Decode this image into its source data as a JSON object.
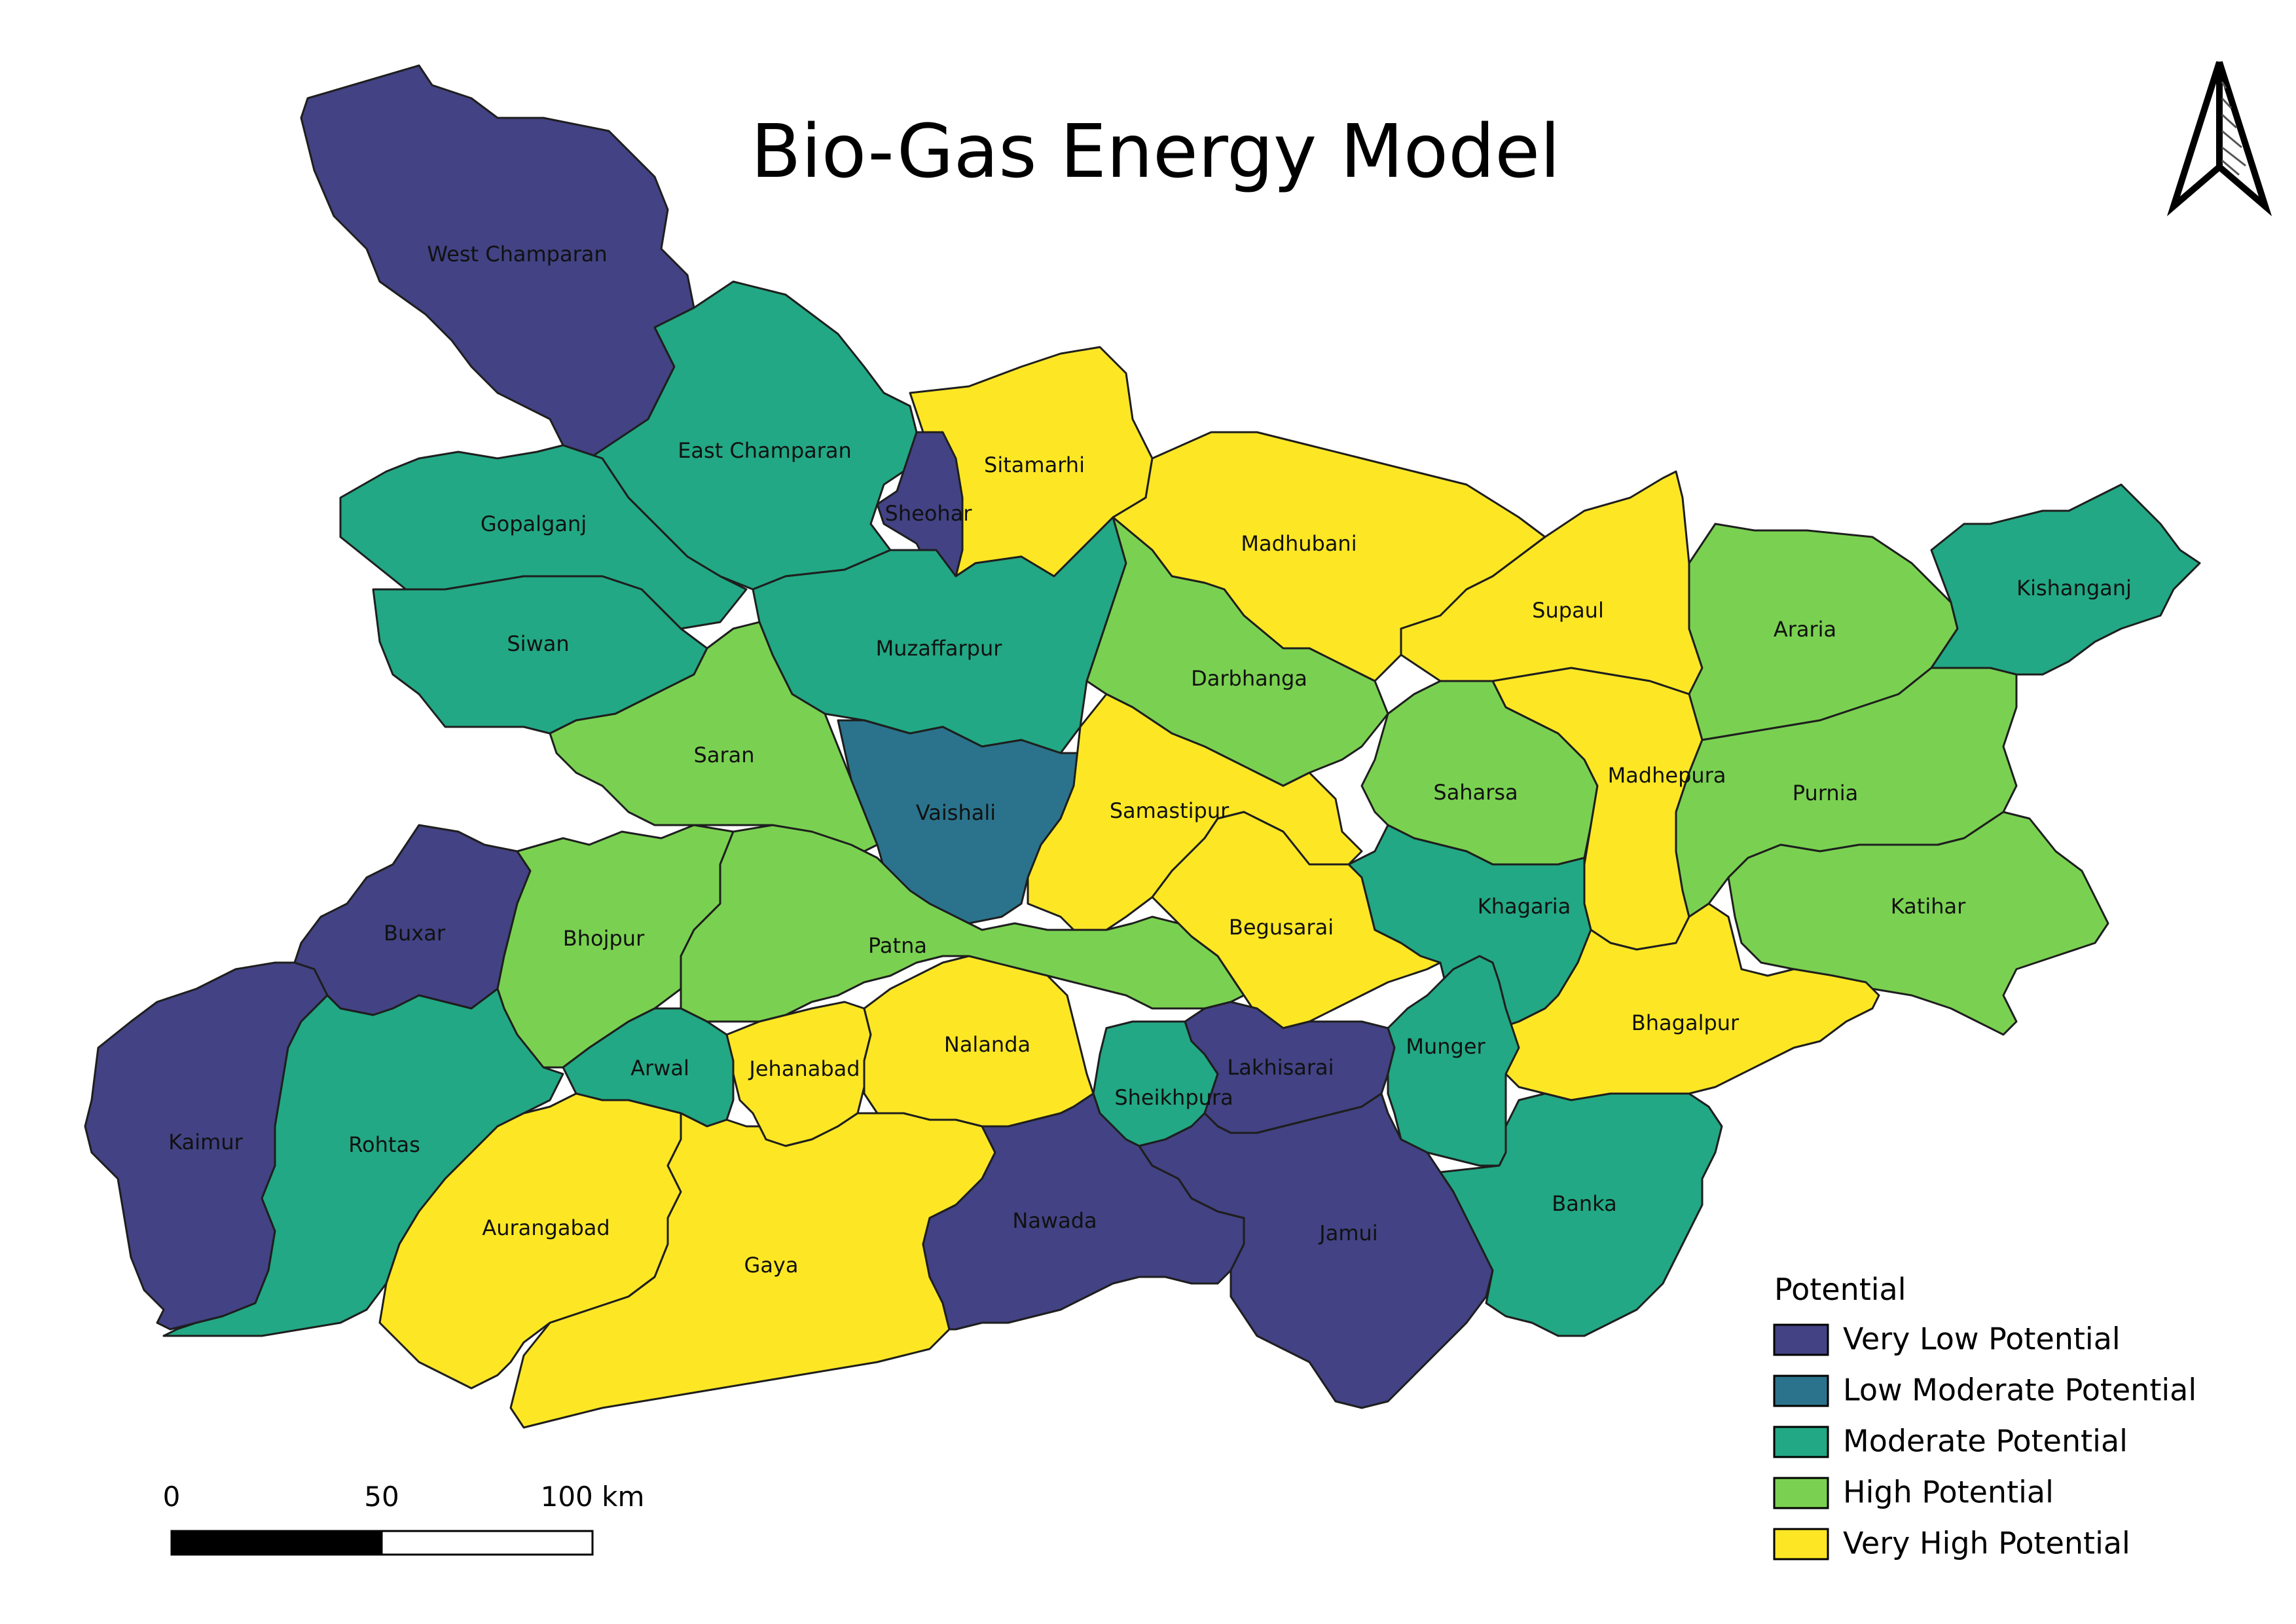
{
  "title": "Bio-Gas Energy Model",
  "legend": {
    "title": "Potential",
    "items": [
      {
        "key": "very_low",
        "label": "Very Low Potential",
        "color": "#424284"
      },
      {
        "key": "low_moderate",
        "label": "Low Moderate Potential",
        "color": "#2b738c"
      },
      {
        "key": "moderate",
        "label": "Moderate Potential",
        "color": "#22a884"
      },
      {
        "key": "high",
        "label": "High Potential",
        "color": "#7ad151"
      },
      {
        "key": "very_high",
        "label": "Very High Potential",
        "color": "#fde725"
      }
    ]
  },
  "scale_bar": {
    "labels": [
      "0",
      "50",
      "100 km"
    ]
  },
  "north_arrow": {
    "icon": "north-arrow-icon"
  },
  "districts": [
    {
      "name": "West Champaran",
      "class": "very_low"
    },
    {
      "name": "East Champaran",
      "class": "moderate"
    },
    {
      "name": "Sitamarhi",
      "class": "very_high"
    },
    {
      "name": "Sheohar",
      "class": "very_low"
    },
    {
      "name": "Madhubani",
      "class": "very_high"
    },
    {
      "name": "Supaul",
      "class": "very_high"
    },
    {
      "name": "Araria",
      "class": "high"
    },
    {
      "name": "Kishanganj",
      "class": "moderate"
    },
    {
      "name": "Gopalganj",
      "class": "moderate"
    },
    {
      "name": "Siwan",
      "class": "moderate"
    },
    {
      "name": "Muzaffarpur",
      "class": "moderate"
    },
    {
      "name": "Darbhanga",
      "class": "high"
    },
    {
      "name": "Saran",
      "class": "high"
    },
    {
      "name": "Vaishali",
      "class": "low_moderate"
    },
    {
      "name": "Samastipur",
      "class": "very_high"
    },
    {
      "name": "Saharsa",
      "class": "high"
    },
    {
      "name": "Madhepura",
      "class": "very_high"
    },
    {
      "name": "Purnia",
      "class": "high"
    },
    {
      "name": "Katihar",
      "class": "high"
    },
    {
      "name": "Buxar",
      "class": "very_low"
    },
    {
      "name": "Bhojpur",
      "class": "high"
    },
    {
      "name": "Patna",
      "class": "high"
    },
    {
      "name": "Begusarai",
      "class": "very_high"
    },
    {
      "name": "Khagaria",
      "class": "moderate"
    },
    {
      "name": "Bhagalpur",
      "class": "very_high"
    },
    {
      "name": "Kaimur",
      "class": "very_low"
    },
    {
      "name": "Rohtas",
      "class": "moderate"
    },
    {
      "name": "Arwal",
      "class": "moderate"
    },
    {
      "name": "Jehanabad",
      "class": "very_high"
    },
    {
      "name": "Nalanda",
      "class": "very_high"
    },
    {
      "name": "Sheikhpura",
      "class": "moderate"
    },
    {
      "name": "Lakhisarai",
      "class": "very_low"
    },
    {
      "name": "Munger",
      "class": "moderate"
    },
    {
      "name": "Aurangabad",
      "class": "very_high"
    },
    {
      "name": "Gaya",
      "class": "very_high"
    },
    {
      "name": "Nawada",
      "class": "very_low"
    },
    {
      "name": "Jamui",
      "class": "very_low"
    },
    {
      "name": "Banka",
      "class": "moderate"
    }
  ]
}
